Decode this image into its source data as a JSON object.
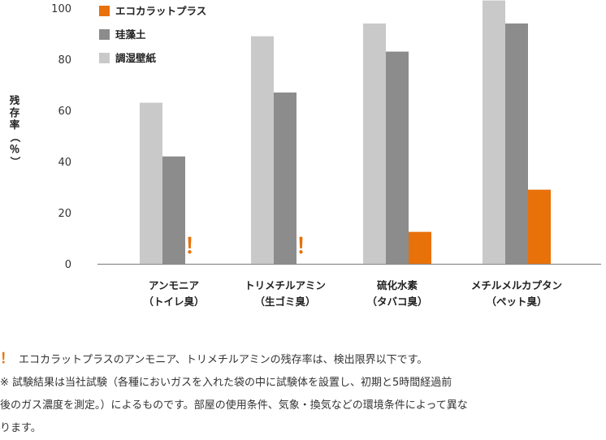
{
  "chart_data": {
    "type": "bar",
    "ylabel": "残存率（％）",
    "ylim": [
      0,
      100
    ],
    "yticks": [
      0,
      20,
      40,
      60,
      80,
      100
    ],
    "grid": false,
    "legend_position": "top-left",
    "categories": [
      [
        "アンモニア",
        "（トイレ臭）"
      ],
      [
        "トリメチルアミン",
        "（生ゴミ臭）"
      ],
      [
        "硫化水素",
        "（タバコ臭）"
      ],
      [
        "メチルメルカプタン",
        "（ペット臭）"
      ]
    ],
    "series": [
      {
        "name": "調湿壁紙",
        "color": "#c9c9c9",
        "values": [
          63,
          89,
          94,
          103
        ]
      },
      {
        "name": "珪藻土",
        "color": "#8c8c8c",
        "values": [
          42,
          67,
          83,
          94
        ]
      },
      {
        "name": "エコカラットプラス",
        "color": "#e8710a",
        "values": [
          null,
          null,
          12.5,
          29
        ]
      }
    ],
    "below_detection_marker": "！",
    "below_detection_color": "#e8710a"
  },
  "notes": {
    "mark": "！",
    "line1": "エコカラットプラスのアンモニア、トリメチルアミンの残存率は、検出限界以下です。",
    "line2": "※ 試験結果は当社試験（各種においガスを入れた袋の中に試験体を設置し、初期と5時間経過前",
    "line3": "後のガス濃度を測定。）によるものです。部屋の使用条件、気象・換気などの環境条件によって異な",
    "line4": "ります。"
  }
}
